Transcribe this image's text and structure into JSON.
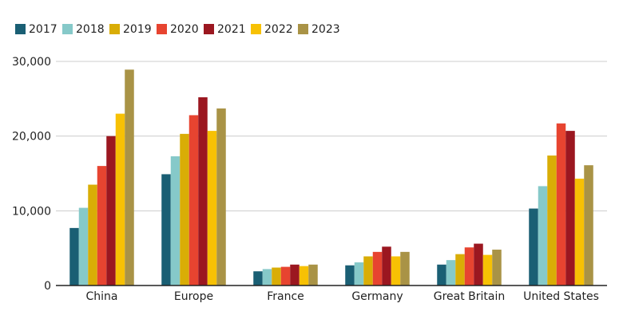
{
  "chart_data": {
    "type": "bar",
    "categories": [
      "China",
      "Europe",
      "France",
      "Germany",
      "Great Britain",
      "United States"
    ],
    "series": [
      {
        "name": "2017",
        "color": "#1a5f74",
        "values": [
          7700,
          14900,
          1900,
          2700,
          2800,
          10300
        ]
      },
      {
        "name": "2018",
        "color": "#86c9c9",
        "values": [
          10400,
          17300,
          2200,
          3100,
          3400,
          13300
        ]
      },
      {
        "name": "2019",
        "color": "#d9ad06",
        "values": [
          13500,
          20300,
          2400,
          3900,
          4200,
          17400
        ]
      },
      {
        "name": "2020",
        "color": "#e74430",
        "values": [
          16000,
          22800,
          2500,
          4500,
          5100,
          21700
        ]
      },
      {
        "name": "2021",
        "color": "#9b1720",
        "values": [
          20000,
          25200,
          2800,
          5200,
          5600,
          20700
        ]
      },
      {
        "name": "2022",
        "color": "#f7c104",
        "values": [
          23000,
          20700,
          2600,
          3900,
          4100,
          14300
        ]
      },
      {
        "name": "2023",
        "color": "#a99346",
        "values": [
          28900,
          23700,
          2800,
          4500,
          4800,
          16100
        ]
      }
    ],
    "ylim": [
      0,
      30000
    ],
    "yticks": [
      0,
      10000,
      20000,
      30000
    ],
    "ytick_labels": [
      "0",
      "10,000",
      "20,000",
      "30,000"
    ],
    "title": "",
    "xlabel": "",
    "ylabel": "",
    "grid": true,
    "legend_position": "top-left"
  }
}
